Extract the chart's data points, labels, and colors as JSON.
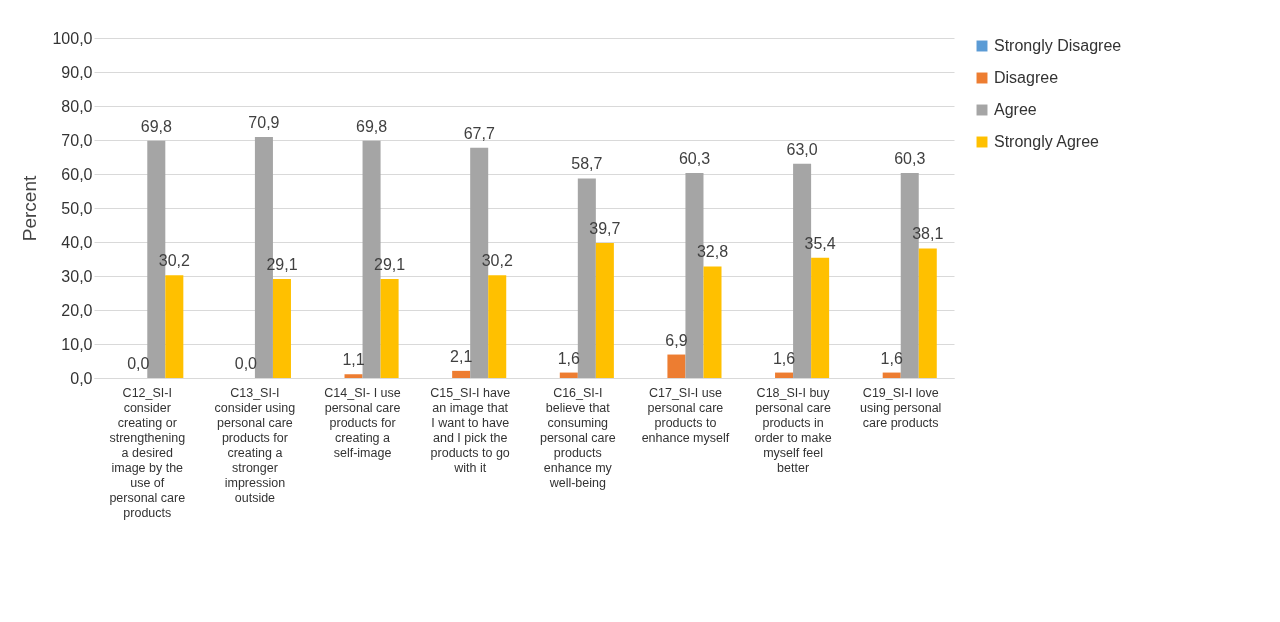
{
  "chart_data": {
    "type": "bar",
    "ylabel": "Percent",
    "categories": [
      "C12_SI-I consider creating or strengthening a desired image by the use of personal care products",
      "C13_SI-I consider using personal care products for creating a stronger impression outside",
      "C14_SI- I use personal care products for creating a self-image",
      "C15_SI-I have an image that I want to have and I pick the products to go with it",
      "C16_SI-I believe that consuming personal care products enhance my well-being",
      "C17_SI-I use personal care products to enhance myself",
      "C18_SI-I buy personal care products in order to make myself feel better",
      "C19_SI-I love using personal care products"
    ],
    "series": [
      {
        "name": "Strongly Disagree",
        "color": "#5b9bd5",
        "values": [
          null,
          null,
          null,
          null,
          null,
          null,
          null,
          null
        ]
      },
      {
        "name": "Disagree",
        "color": "#ed7d31",
        "values": [
          0,
          0,
          1.1,
          2.1,
          1.6,
          6.9,
          1.6,
          1.6
        ],
        "value_labels": [
          "0,0",
          "0,0",
          "1,1",
          "2,1",
          "1,6",
          "6,9",
          "1,6",
          "1,6"
        ]
      },
      {
        "name": "Agree",
        "color": "#a5a5a5",
        "values": [
          69.8,
          70.9,
          69.8,
          67.7,
          58.7,
          60.3,
          63.0,
          60.3
        ],
        "value_labels": [
          "69,8",
          "70,9",
          "69,8",
          "67,7",
          "58,7",
          "60,3",
          "63,0",
          "60,3"
        ]
      },
      {
        "name": "Strongly Agree",
        "color": "#ffc000",
        "values": [
          30.2,
          29.1,
          29.1,
          30.2,
          39.7,
          32.8,
          35.4,
          38.1
        ],
        "value_labels": [
          "30,2",
          "29,1",
          "29,1",
          "30,2",
          "39,7",
          "32,8",
          "35,4",
          "38,1"
        ]
      }
    ],
    "ylim": [
      0,
      100
    ],
    "yticks": [
      {
        "value": 0,
        "label": "0,0"
      },
      {
        "value": 10,
        "label": "10,0"
      },
      {
        "value": 20,
        "label": "20,0"
      },
      {
        "value": 30,
        "label": "30,0"
      },
      {
        "value": 40,
        "label": "40,0"
      },
      {
        "value": 50,
        "label": "50,0"
      },
      {
        "value": 60,
        "label": "60,0"
      },
      {
        "value": 70,
        "label": "70,0"
      },
      {
        "value": 80,
        "label": "80,0"
      },
      {
        "value": 90,
        "label": "90,0"
      },
      {
        "value": 100,
        "label": "100,0"
      }
    ],
    "grid": "y",
    "legend": "right"
  }
}
